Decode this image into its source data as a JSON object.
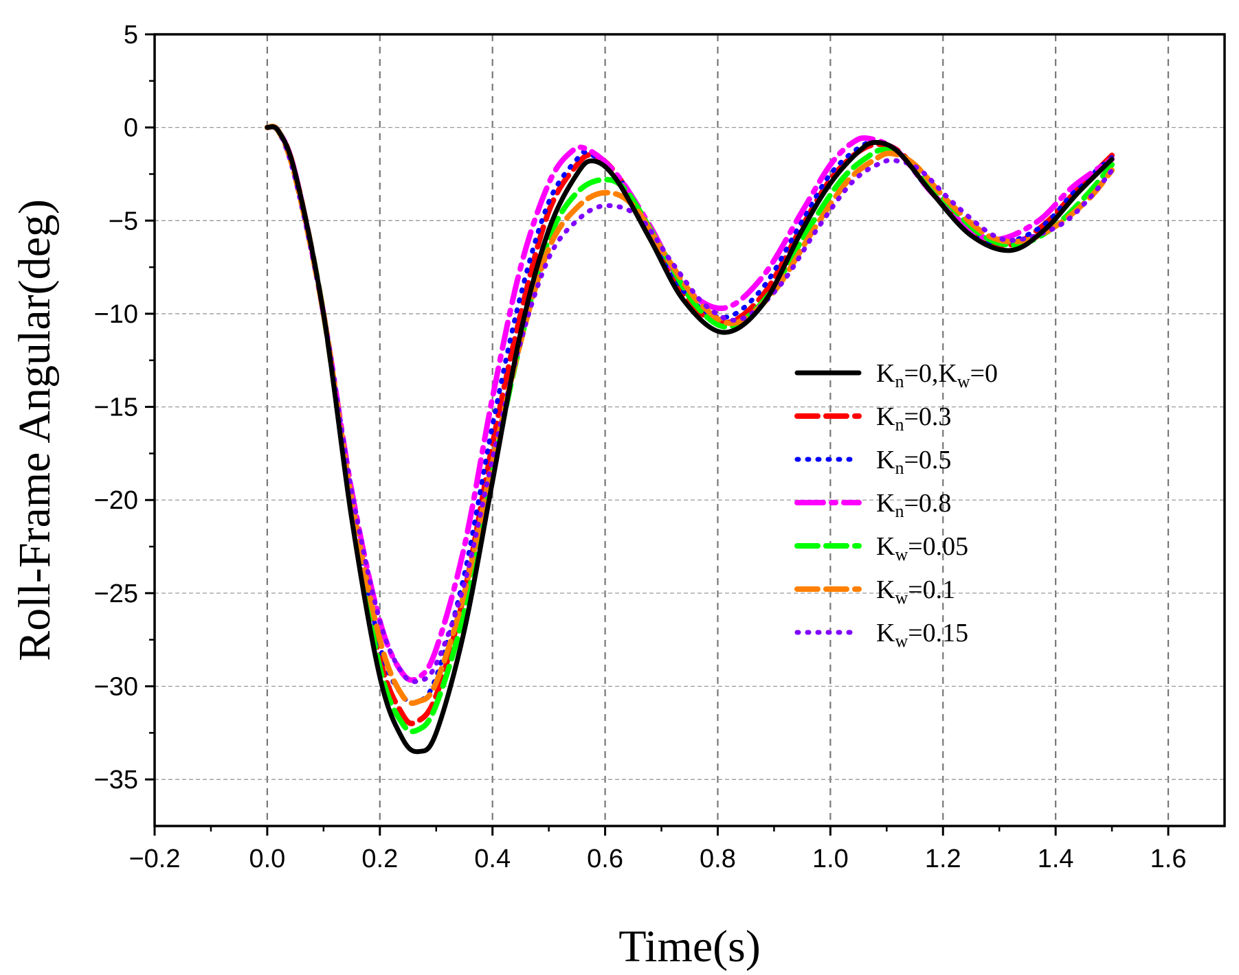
{
  "chart_data": {
    "type": "line",
    "title": "",
    "xlabel": "Time(s)",
    "ylabel": "Roll-Frame Angular(deg)",
    "xlim": [
      -0.2,
      1.7
    ],
    "ylim": [
      -37.5,
      5
    ],
    "xticks": [
      -0.2,
      0.0,
      0.2,
      0.4,
      0.6,
      0.8,
      1.0,
      1.2,
      1.4,
      1.6
    ],
    "xtick_labels": [
      "−0.2",
      "0.0",
      "0.2",
      "0.4",
      "0.6",
      "0.8",
      "1.0",
      "1.2",
      "1.4",
      "1.6"
    ],
    "yticks": [
      5,
      0,
      -5,
      -10,
      -15,
      -20,
      -25,
      -30,
      -35
    ],
    "ytick_labels": [
      "5",
      "0",
      "−5",
      "−10",
      "−15",
      "−20",
      "−25",
      "−30",
      "−35"
    ],
    "grid": true,
    "legend_position": "center-right",
    "series": [
      {
        "name": "K_n=0,K_w=0",
        "legend": {
          "p1": "K",
          "s1": "n",
          "t1": "=0,K",
          "s2": "w",
          "t2": "=0"
        },
        "color": "#000000",
        "style": "solid",
        "points": [
          [
            0.0,
            0
          ],
          [
            0.02,
            -0.2
          ],
          [
            0.05,
            -2.5
          ],
          [
            0.1,
            -10
          ],
          [
            0.15,
            -21
          ],
          [
            0.2,
            -29.5
          ],
          [
            0.24,
            -32.8
          ],
          [
            0.27,
            -33.5
          ],
          [
            0.3,
            -32.5
          ],
          [
            0.35,
            -27
          ],
          [
            0.4,
            -19
          ],
          [
            0.45,
            -11
          ],
          [
            0.5,
            -5.5
          ],
          [
            0.55,
            -2.5
          ],
          [
            0.58,
            -1.8
          ],
          [
            0.62,
            -2.8
          ],
          [
            0.68,
            -6
          ],
          [
            0.74,
            -9.3
          ],
          [
            0.81,
            -11
          ],
          [
            0.88,
            -9.5
          ],
          [
            0.95,
            -5.5
          ],
          [
            1.0,
            -3
          ],
          [
            1.05,
            -1.3
          ],
          [
            1.08,
            -0.8
          ],
          [
            1.12,
            -1.3
          ],
          [
            1.18,
            -3.5
          ],
          [
            1.25,
            -5.8
          ],
          [
            1.32,
            -6.6
          ],
          [
            1.38,
            -5.5
          ],
          [
            1.44,
            -3.5
          ],
          [
            1.5,
            -1.7
          ]
        ]
      },
      {
        "name": "K_n=0.3",
        "legend": {
          "p1": "K",
          "s1": "n",
          "t1": "=0.3"
        },
        "color": "#ff0000",
        "style": "dash",
        "points": [
          [
            0.0,
            0
          ],
          [
            0.02,
            -0.2
          ],
          [
            0.05,
            -2.5
          ],
          [
            0.1,
            -10
          ],
          [
            0.15,
            -20.5
          ],
          [
            0.2,
            -28.5
          ],
          [
            0.24,
            -31.5
          ],
          [
            0.265,
            -31.9
          ],
          [
            0.3,
            -30.5
          ],
          [
            0.35,
            -25
          ],
          [
            0.4,
            -17
          ],
          [
            0.45,
            -10
          ],
          [
            0.5,
            -4.5
          ],
          [
            0.55,
            -2
          ],
          [
            0.58,
            -1.5
          ],
          [
            0.62,
            -2.5
          ],
          [
            0.68,
            -5.5
          ],
          [
            0.74,
            -9
          ],
          [
            0.81,
            -10.5
          ],
          [
            0.88,
            -9
          ],
          [
            0.95,
            -5.3
          ],
          [
            1.0,
            -2.8
          ],
          [
            1.05,
            -1.3
          ],
          [
            1.09,
            -0.9
          ],
          [
            1.13,
            -1.5
          ],
          [
            1.19,
            -3.7
          ],
          [
            1.26,
            -5.8
          ],
          [
            1.32,
            -6.3
          ],
          [
            1.38,
            -5.2
          ],
          [
            1.44,
            -3.3
          ],
          [
            1.5,
            -1.5
          ]
        ]
      },
      {
        "name": "K_n=0.5",
        "legend": {
          "p1": "K",
          "s1": "n",
          "t1": "=0.5"
        },
        "color": "#0000ff",
        "style": "dot",
        "points": [
          [
            0.0,
            0
          ],
          [
            0.02,
            -0.2
          ],
          [
            0.05,
            -2.5
          ],
          [
            0.1,
            -10
          ],
          [
            0.15,
            -20
          ],
          [
            0.2,
            -27.8
          ],
          [
            0.24,
            -30.5
          ],
          [
            0.27,
            -30.8
          ],
          [
            0.3,
            -29.5
          ],
          [
            0.35,
            -24
          ],
          [
            0.4,
            -16
          ],
          [
            0.45,
            -9
          ],
          [
            0.5,
            -4
          ],
          [
            0.55,
            -1.7
          ],
          [
            0.57,
            -1.4
          ],
          [
            0.62,
            -2.5
          ],
          [
            0.68,
            -5.5
          ],
          [
            0.74,
            -8.8
          ],
          [
            0.81,
            -10.2
          ],
          [
            0.88,
            -8.6
          ],
          [
            0.95,
            -5
          ],
          [
            1.0,
            -2.5
          ],
          [
            1.05,
            -1.1
          ],
          [
            1.08,
            -0.8
          ],
          [
            1.12,
            -1.3
          ],
          [
            1.18,
            -3.5
          ],
          [
            1.26,
            -5.8
          ],
          [
            1.31,
            -6.2
          ],
          [
            1.38,
            -5.2
          ],
          [
            1.44,
            -3.2
          ],
          [
            1.5,
            -1.6
          ]
        ]
      },
      {
        "name": "K_n=0.8",
        "legend": {
          "p1": "K",
          "s1": "n",
          "t1": "=0.8"
        },
        "color": "#ff00ff",
        "style": "longdash",
        "points": [
          [
            0.0,
            0
          ],
          [
            0.02,
            -0.2
          ],
          [
            0.05,
            -2.5
          ],
          [
            0.1,
            -10
          ],
          [
            0.15,
            -19.5
          ],
          [
            0.2,
            -26.5
          ],
          [
            0.24,
            -29.3
          ],
          [
            0.27,
            -29.5
          ],
          [
            0.3,
            -28
          ],
          [
            0.35,
            -22.5
          ],
          [
            0.4,
            -14.5
          ],
          [
            0.45,
            -7.5
          ],
          [
            0.5,
            -3
          ],
          [
            0.54,
            -1.3
          ],
          [
            0.57,
            -1.2
          ],
          [
            0.62,
            -2.5
          ],
          [
            0.68,
            -5.3
          ],
          [
            0.74,
            -8.5
          ],
          [
            0.81,
            -9.7
          ],
          [
            0.88,
            -8
          ],
          [
            0.95,
            -4.5
          ],
          [
            1.0,
            -2
          ],
          [
            1.04,
            -0.8
          ],
          [
            1.07,
            -0.6
          ],
          [
            1.12,
            -1.3
          ],
          [
            1.18,
            -3.5
          ],
          [
            1.25,
            -5.5
          ],
          [
            1.3,
            -6
          ],
          [
            1.37,
            -5
          ],
          [
            1.43,
            -3.2
          ],
          [
            1.5,
            -1.7
          ]
        ]
      },
      {
        "name": "K_w=0.05",
        "legend": {
          "p1": "K",
          "s1": "w",
          "t1": "=0.05"
        },
        "color": "#00ff00",
        "style": "dash",
        "points": [
          [
            0.0,
            0
          ],
          [
            0.02,
            -0.2
          ],
          [
            0.05,
            -2.6
          ],
          [
            0.1,
            -10
          ],
          [
            0.15,
            -20.5
          ],
          [
            0.2,
            -29
          ],
          [
            0.24,
            -32
          ],
          [
            0.27,
            -32.3
          ],
          [
            0.3,
            -31
          ],
          [
            0.35,
            -26
          ],
          [
            0.4,
            -18.5
          ],
          [
            0.45,
            -11.5
          ],
          [
            0.5,
            -6
          ],
          [
            0.55,
            -3.5
          ],
          [
            0.6,
            -2.8
          ],
          [
            0.64,
            -3.5
          ],
          [
            0.7,
            -6.5
          ],
          [
            0.76,
            -9.5
          ],
          [
            0.82,
            -10.7
          ],
          [
            0.89,
            -9
          ],
          [
            0.96,
            -5.5
          ],
          [
            1.02,
            -2.8
          ],
          [
            1.07,
            -1.5
          ],
          [
            1.1,
            -1.2
          ],
          [
            1.14,
            -1.8
          ],
          [
            1.2,
            -3.8
          ],
          [
            1.27,
            -5.8
          ],
          [
            1.33,
            -6.3
          ],
          [
            1.39,
            -5.5
          ],
          [
            1.45,
            -3.8
          ],
          [
            1.5,
            -2
          ]
        ]
      },
      {
        "name": "K_w=0.1",
        "legend": {
          "p1": "K",
          "s1": "w",
          "t1": "=0.1"
        },
        "color": "#ff8000",
        "style": "dash",
        "points": [
          [
            0.0,
            0
          ],
          [
            0.02,
            -0.2
          ],
          [
            0.05,
            -2.7
          ],
          [
            0.1,
            -10
          ],
          [
            0.15,
            -20
          ],
          [
            0.2,
            -27.5
          ],
          [
            0.24,
            -30.5
          ],
          [
            0.27,
            -30.8
          ],
          [
            0.3,
            -29.8
          ],
          [
            0.35,
            -25
          ],
          [
            0.4,
            -18
          ],
          [
            0.45,
            -11.5
          ],
          [
            0.5,
            -6.5
          ],
          [
            0.55,
            -4.3
          ],
          [
            0.6,
            -3.5
          ],
          [
            0.65,
            -4.2
          ],
          [
            0.71,
            -7
          ],
          [
            0.77,
            -9.5
          ],
          [
            0.83,
            -10.5
          ],
          [
            0.9,
            -8.8
          ],
          [
            0.97,
            -5.5
          ],
          [
            1.03,
            -2.9
          ],
          [
            1.08,
            -1.7
          ],
          [
            1.11,
            -1.4
          ],
          [
            1.15,
            -2
          ],
          [
            1.21,
            -4
          ],
          [
            1.28,
            -5.8
          ],
          [
            1.34,
            -6.1
          ],
          [
            1.4,
            -5.3
          ],
          [
            1.46,
            -3.8
          ],
          [
            1.5,
            -2.3
          ]
        ]
      },
      {
        "name": "K_w=0.15",
        "legend": {
          "p1": "K",
          "s1": "w",
          "t1": "=0.15"
        },
        "color": "#8000ff",
        "style": "dot",
        "points": [
          [
            0.0,
            0
          ],
          [
            0.02,
            -0.2
          ],
          [
            0.05,
            -2.8
          ],
          [
            0.1,
            -10
          ],
          [
            0.15,
            -19.5
          ],
          [
            0.2,
            -26.5
          ],
          [
            0.24,
            -29.3
          ],
          [
            0.27,
            -29.7
          ],
          [
            0.3,
            -28.8
          ],
          [
            0.35,
            -24.5
          ],
          [
            0.4,
            -17.8
          ],
          [
            0.45,
            -11.5
          ],
          [
            0.5,
            -7
          ],
          [
            0.55,
            -5
          ],
          [
            0.6,
            -4.2
          ],
          [
            0.66,
            -4.8
          ],
          [
            0.72,
            -7.3
          ],
          [
            0.78,
            -9.6
          ],
          [
            0.84,
            -10.3
          ],
          [
            0.91,
            -8.5
          ],
          [
            0.98,
            -5.3
          ],
          [
            1.04,
            -2.9
          ],
          [
            1.09,
            -1.9
          ],
          [
            1.12,
            -1.8
          ],
          [
            1.16,
            -2.3
          ],
          [
            1.22,
            -4.1
          ],
          [
            1.29,
            -5.8
          ],
          [
            1.34,
            -6
          ],
          [
            1.41,
            -5.2
          ],
          [
            1.46,
            -3.8
          ],
          [
            1.5,
            -2.3
          ]
        ]
      }
    ]
  }
}
